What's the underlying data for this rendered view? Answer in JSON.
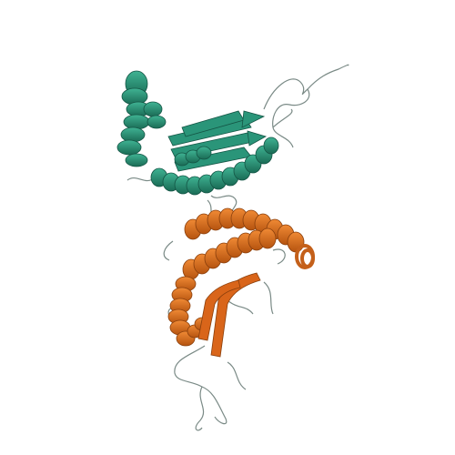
{
  "scene": {
    "background": "#ffffff",
    "subject": "protein-cartoon",
    "chains": [
      {
        "id": "A",
        "color": "#2a9579",
        "dark": "#1a6b55",
        "coil": "#3d8f7a"
      },
      {
        "id": "B",
        "color": "#e8741e",
        "dark": "#a94d10",
        "coil": "#c46a2a"
      }
    ],
    "coil_color": "#7a8a86"
  }
}
